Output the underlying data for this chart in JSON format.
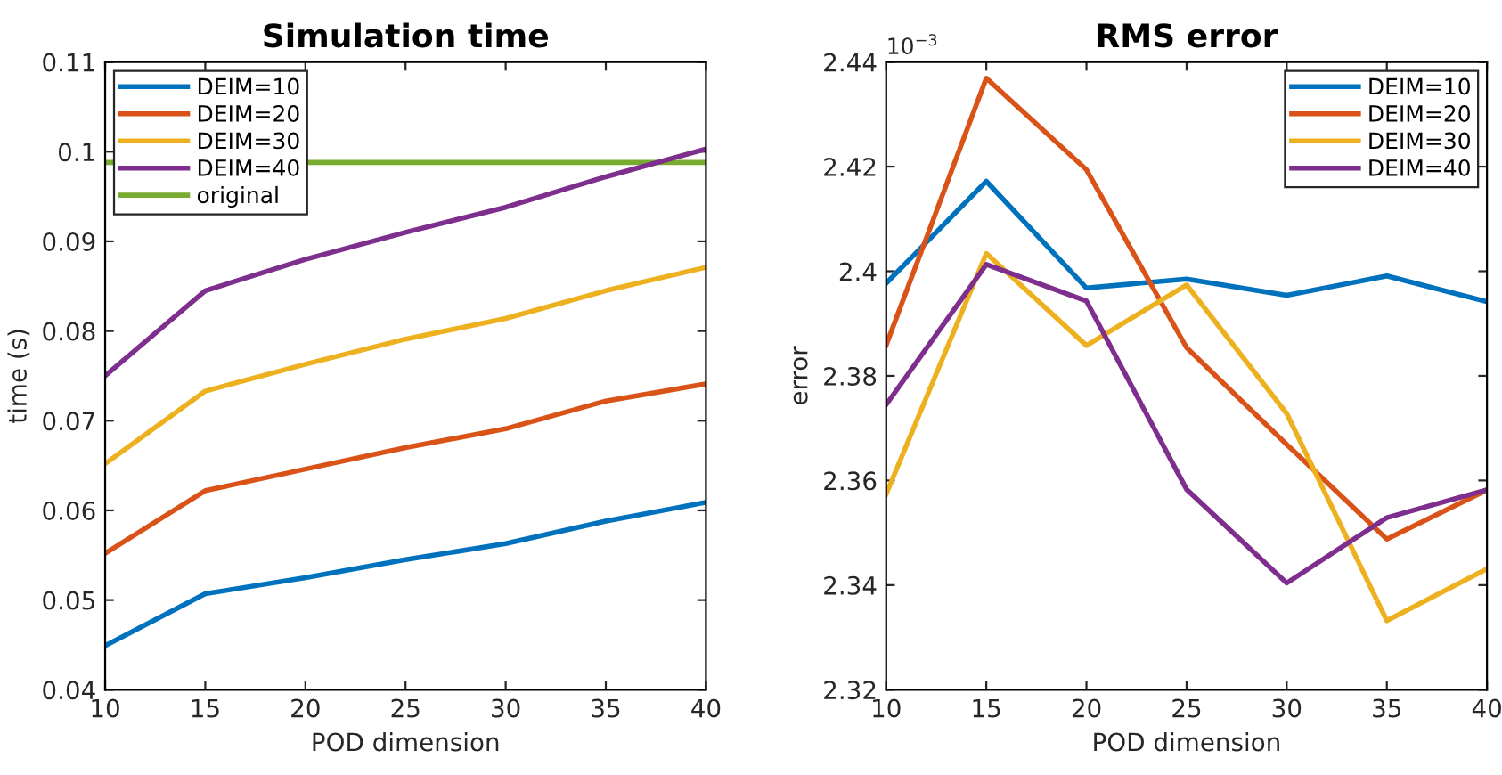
{
  "chart_data": [
    {
      "type": "line",
      "title": "Simulation time",
      "xlabel": "POD dimension",
      "ylabel": "time (s)",
      "x": [
        10,
        15,
        20,
        25,
        30,
        35,
        40
      ],
      "xlim": [
        10,
        40
      ],
      "xticks": [
        10,
        15,
        20,
        25,
        30,
        35,
        40
      ],
      "ylim": [
        0.04,
        0.11
      ],
      "yticks": [
        0.04,
        0.05,
        0.06,
        0.07,
        0.08,
        0.09,
        0.1,
        0.11
      ],
      "grid": false,
      "legend": "top left",
      "series": [
        {
          "name": "DEIM=10",
          "color": "#0072bd",
          "values": [
            0.0449,
            0.0507,
            0.0525,
            0.0545,
            0.0563,
            0.0588,
            0.0609
          ]
        },
        {
          "name": "DEIM=20",
          "color": "#d95319",
          "values": [
            0.0552,
            0.0622,
            0.0646,
            0.067,
            0.0691,
            0.0722,
            0.0741
          ]
        },
        {
          "name": "DEIM=30",
          "color": "#edb120",
          "values": [
            0.0652,
            0.0733,
            0.0763,
            0.0791,
            0.0814,
            0.0845,
            0.0871
          ]
        },
        {
          "name": "DEIM=40",
          "color": "#7e2f8e",
          "values": [
            0.075,
            0.0845,
            0.088,
            0.091,
            0.0938,
            0.0972,
            0.1003
          ]
        }
      ],
      "ref_lines": [
        {
          "axis": "y",
          "value": 0.0988,
          "label": "original",
          "color": "#77ac30",
          "line_style": "solid"
        }
      ]
    },
    {
      "type": "line",
      "title": "RMS error",
      "xlabel": "POD dimension",
      "ylabel": "error",
      "annotations": [
        "10$^{−3}$"
      ],
      "x": [
        10,
        15,
        20,
        25,
        30,
        35,
        40
      ],
      "xlim": [
        10,
        40
      ],
      "xticks": [
        10,
        15,
        20,
        25,
        30,
        35,
        40
      ],
      "ylim": [
        2.32,
        2.44
      ],
      "yticks": [
        2.32,
        2.34,
        2.36,
        2.38,
        2.4,
        2.42,
        2.44
      ],
      "grid": false,
      "legend": "top right",
      "series": [
        {
          "name": "DEIM=10",
          "color": "#0072bd",
          "values": [
            2.3977,
            2.4172,
            2.3968,
            2.3985,
            2.3954,
            2.3991,
            2.3942
          ]
        },
        {
          "name": "DEIM=20",
          "color": "#d95319",
          "values": [
            2.3859,
            2.4369,
            2.4194,
            2.3854,
            2.3669,
            2.3488,
            2.3582
          ]
        },
        {
          "name": "DEIM=30",
          "color": "#edb120",
          "values": [
            2.3574,
            2.4034,
            2.3858,
            2.3974,
            2.3728,
            2.3332,
            2.3431
          ]
        },
        {
          "name": "DEIM=40",
          "color": "#7e2f8e",
          "values": [
            2.3745,
            2.4013,
            2.3943,
            2.3583,
            2.3404,
            2.3529,
            2.3582
          ]
        }
      ]
    }
  ]
}
